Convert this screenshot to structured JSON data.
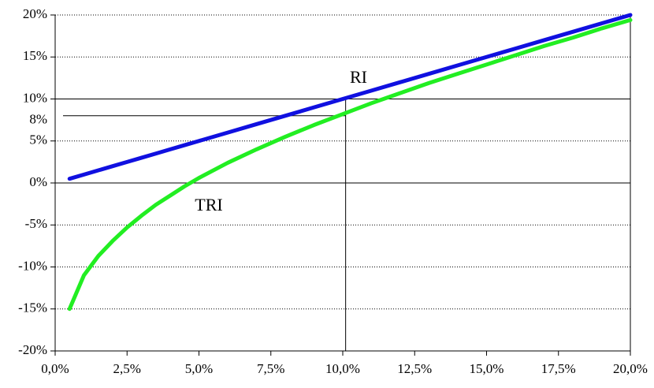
{
  "chart_data": {
    "type": "line",
    "x": [
      0.5,
      1,
      1.5,
      2,
      2.5,
      3,
      3.5,
      4,
      4.5,
      5,
      6,
      7,
      8,
      9,
      10,
      11,
      12,
      13,
      14,
      15,
      16,
      17,
      18,
      19,
      20
    ],
    "series": [
      {
        "name": "RI",
        "color": "#1010e0",
        "values": [
          0.5,
          1,
          1.5,
          2,
          2.5,
          3,
          3.5,
          4,
          4.5,
          5,
          6,
          7,
          8,
          9,
          10,
          11,
          12,
          13,
          14,
          15,
          16,
          17,
          18,
          19,
          20
        ]
      },
      {
        "name": "TRI",
        "color": "#22ee22",
        "values": [
          -15,
          -11,
          -8.7,
          -6.9,
          -5.3,
          -3.9,
          -2.6,
          -1.5,
          -0.4,
          0.6,
          2.4,
          4.0,
          5.5,
          6.9,
          8.2,
          9.5,
          10.7,
          11.9,
          13.0,
          14.1,
          15.2,
          16.3,
          17.3,
          18.4,
          19.4
        ]
      }
    ],
    "xlim": [
      0,
      20
    ],
    "ylim": [
      -20,
      20
    ],
    "xticks": [
      {
        "value": 0,
        "label": "0,0%"
      },
      {
        "value": 2.5,
        "label": "2,5%"
      },
      {
        "value": 5,
        "label": "5,0%"
      },
      {
        "value": 7.5,
        "label": "7,5%"
      },
      {
        "value": 10,
        "label": "10,0%"
      },
      {
        "value": 12.5,
        "label": "12,5%"
      },
      {
        "value": 15,
        "label": "15,0%"
      },
      {
        "value": 17.5,
        "label": "17,5%"
      },
      {
        "value": 20,
        "label": "20,0%"
      }
    ],
    "yticks": [
      {
        "value": -20,
        "label": "-20%"
      },
      {
        "value": -15,
        "label": "-15%"
      },
      {
        "value": -10,
        "label": "-10%"
      },
      {
        "value": -5,
        "label": "-5%"
      },
      {
        "value": 0,
        "label": "0%"
      },
      {
        "value": 5,
        "label": "5%"
      },
      {
        "value": 10,
        "label": "10%"
      },
      {
        "value": 15,
        "label": "15%"
      },
      {
        "value": 20,
        "label": "20%"
      }
    ],
    "grid": true,
    "hlines": [
      {
        "y": 10
      },
      {
        "y": 8,
        "label": "8%",
        "xmax": 10.1
      }
    ],
    "vlines": [
      {
        "x": 10.1,
        "ymax": 10
      }
    ]
  }
}
